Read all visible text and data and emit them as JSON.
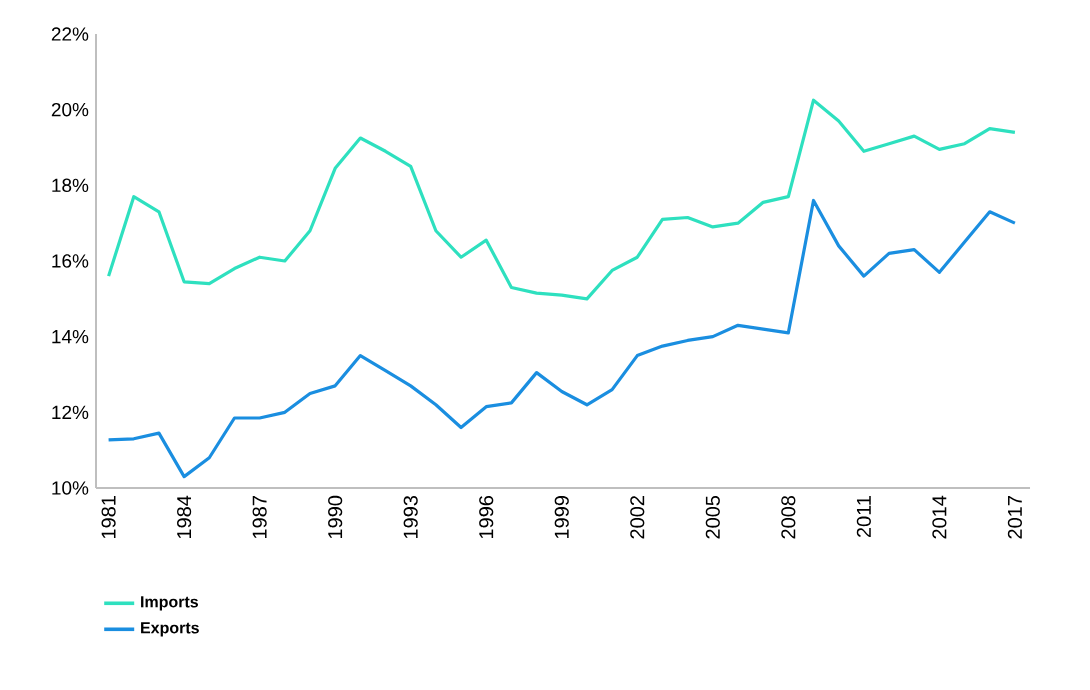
{
  "chart_data": {
    "type": "line",
    "x": [
      1981,
      1982,
      1983,
      1984,
      1985,
      1986,
      1987,
      1988,
      1989,
      1990,
      1991,
      1992,
      1993,
      1994,
      1995,
      1996,
      1997,
      1998,
      1999,
      2000,
      2001,
      2002,
      2003,
      2004,
      2005,
      2006,
      2007,
      2008,
      2009,
      2010,
      2011,
      2012,
      2013,
      2014,
      2015,
      2016,
      2017
    ],
    "series": [
      {
        "name": "Imports",
        "color": "#2ee0bf",
        "values": [
          15.6,
          17.7,
          17.3,
          15.45,
          15.4,
          15.8,
          16.1,
          16.0,
          16.8,
          18.45,
          19.25,
          18.9,
          18.5,
          16.8,
          16.1,
          16.55,
          15.3,
          15.15,
          15.1,
          15.0,
          15.75,
          16.1,
          17.1,
          17.15,
          16.9,
          17.0,
          17.55,
          17.7,
          20.25,
          19.7,
          18.9,
          19.1,
          19.3,
          18.95,
          19.1,
          19.5,
          19.4
        ]
      },
      {
        "name": "Exports",
        "color": "#1a8ee0",
        "values": [
          11.27,
          11.3,
          11.45,
          10.3,
          10.8,
          11.85,
          11.85,
          12.0,
          12.5,
          12.7,
          13.5,
          13.1,
          12.7,
          12.2,
          11.6,
          12.15,
          12.25,
          13.05,
          12.55,
          12.2,
          12.6,
          13.5,
          13.75,
          13.9,
          14.0,
          14.3,
          14.2,
          14.1,
          17.6,
          16.4,
          15.6,
          16.2,
          16.3,
          15.7,
          16.5,
          17.3,
          17.0
        ]
      }
    ],
    "xlim": [
      1980.5,
      2017.6
    ],
    "xticks": [
      1981,
      1984,
      1987,
      1990,
      1993,
      1996,
      1999,
      2002,
      2005,
      2008,
      2011,
      2014,
      2017
    ],
    "ylim": [
      10,
      22
    ],
    "yticks": [
      {
        "value": 10,
        "label": "10%"
      },
      {
        "value": 12,
        "label": "12%"
      },
      {
        "value": 14,
        "label": "14%"
      },
      {
        "value": 16,
        "label": "16%"
      },
      {
        "value": 18,
        "label": "18%"
      },
      {
        "value": 20,
        "label": "20%"
      },
      {
        "value": 22,
        "label": "22%"
      }
    ],
    "grid": false,
    "legend": "bottom left"
  }
}
